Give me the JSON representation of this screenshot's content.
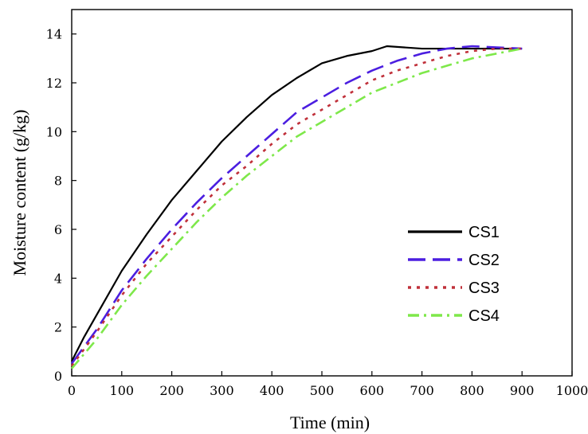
{
  "chart_data": {
    "type": "line",
    "xlabel": "Time (min)",
    "ylabel": "Moisture content (g/kg)",
    "xlim": [
      0,
      1000
    ],
    "ylim": [
      0,
      15
    ],
    "xticks": [
      0,
      100,
      200,
      300,
      400,
      500,
      600,
      700,
      800,
      900,
      1000
    ],
    "yticks": [
      0,
      2,
      4,
      6,
      8,
      10,
      12,
      14
    ],
    "grid": false,
    "legend_position": "lower-right",
    "series": [
      {
        "name": "CS1",
        "color": "#000000",
        "style": "solid",
        "x": [
          0,
          25,
          50,
          100,
          150,
          200,
          250,
          300,
          350,
          400,
          450,
          500,
          550,
          600,
          630,
          700,
          800,
          900
        ],
        "y": [
          0.6,
          1.6,
          2.5,
          4.3,
          5.8,
          7.2,
          8.4,
          9.6,
          10.6,
          11.5,
          12.2,
          12.8,
          13.1,
          13.3,
          13.5,
          13.4,
          13.4,
          13.4
        ]
      },
      {
        "name": "CS2",
        "color": "#4b1ee0",
        "style": "dashed",
        "x": [
          0,
          50,
          100,
          150,
          200,
          250,
          300,
          350,
          400,
          450,
          500,
          550,
          600,
          650,
          700,
          750,
          800,
          850,
          900
        ],
        "y": [
          0.5,
          1.9,
          3.5,
          4.8,
          6.0,
          7.1,
          8.1,
          9.0,
          9.9,
          10.8,
          11.4,
          12.0,
          12.5,
          12.9,
          13.2,
          13.4,
          13.5,
          13.45,
          13.4
        ]
      },
      {
        "name": "CS3",
        "color": "#c0303a",
        "style": "dotted",
        "x": [
          0,
          50,
          100,
          150,
          200,
          250,
          300,
          350,
          400,
          450,
          500,
          550,
          600,
          650,
          700,
          750,
          800,
          850,
          900
        ],
        "y": [
          0.4,
          1.8,
          3.3,
          4.6,
          5.7,
          6.8,
          7.8,
          8.6,
          9.5,
          10.3,
          10.9,
          11.5,
          12.1,
          12.5,
          12.8,
          13.1,
          13.3,
          13.4,
          13.4
        ]
      },
      {
        "name": "CS4",
        "color": "#7ee84a",
        "style": "dashdot",
        "x": [
          0,
          50,
          100,
          150,
          200,
          250,
          300,
          350,
          400,
          450,
          500,
          550,
          600,
          650,
          700,
          750,
          800,
          850,
          900
        ],
        "y": [
          0.3,
          1.5,
          2.9,
          4.1,
          5.2,
          6.3,
          7.3,
          8.2,
          9.0,
          9.8,
          10.4,
          11.0,
          11.6,
          12.0,
          12.4,
          12.7,
          13.0,
          13.2,
          13.4
        ]
      }
    ]
  }
}
